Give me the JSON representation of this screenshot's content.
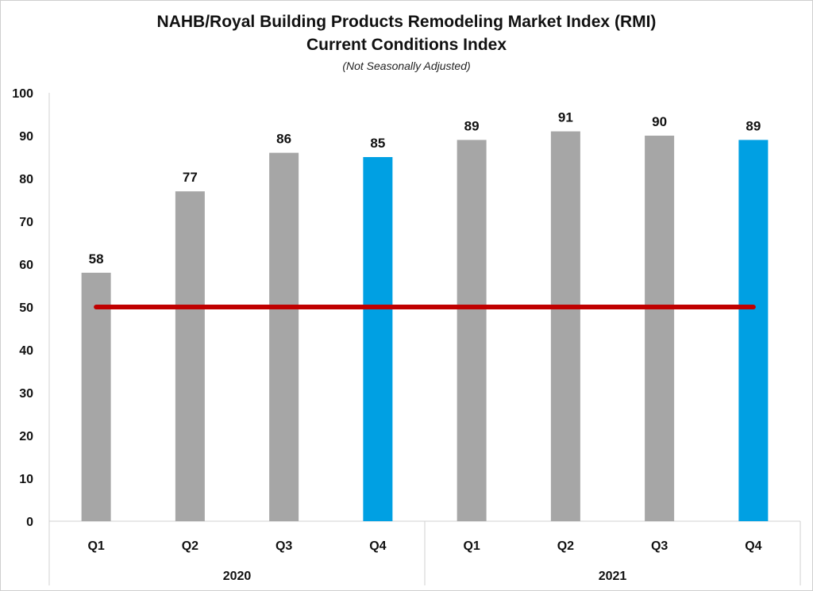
{
  "chart_data": {
    "type": "bar",
    "title": "NAHB/Royal Building Products Remodeling Market Index (RMI)",
    "subtitle": "Current Conditions Index",
    "note": "(Not Seasonally Adjusted)",
    "categories": [
      "Q1",
      "Q2",
      "Q3",
      "Q4",
      "Q1",
      "Q2",
      "Q3",
      "Q4"
    ],
    "groups": [
      {
        "label": "2020",
        "categories": [
          "Q1",
          "Q2",
          "Q3",
          "Q4"
        ]
      },
      {
        "label": "2021",
        "categories": [
          "Q1",
          "Q2",
          "Q3",
          "Q4"
        ]
      }
    ],
    "values": [
      58,
      77,
      86,
      85,
      89,
      91,
      90,
      89
    ],
    "bar_colors": [
      "#a6a6a6",
      "#a6a6a6",
      "#a6a6a6",
      "#00a0e3",
      "#a6a6a6",
      "#a6a6a6",
      "#a6a6a6",
      "#00a0e3"
    ],
    "reference_line": {
      "value": 50,
      "color": "#c00000"
    },
    "ylim": [
      0,
      100
    ],
    "yticks": [
      0,
      10,
      20,
      30,
      40,
      50,
      60,
      70,
      80,
      90,
      100
    ],
    "xlabel": "",
    "ylabel": "",
    "grid": false,
    "legend": "none",
    "data_labels": true
  }
}
